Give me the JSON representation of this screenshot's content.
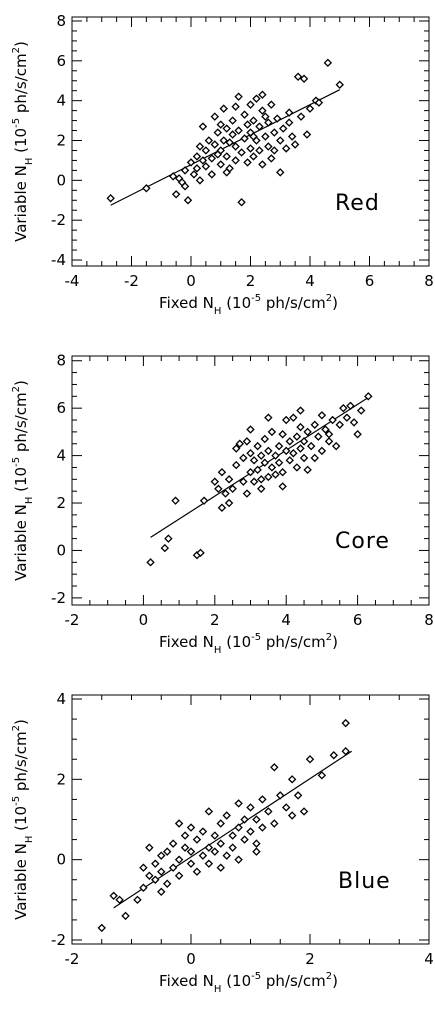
{
  "chart_data": [
    {
      "type": "scatter",
      "panel_label": "Red",
      "xlabel_main": "Fixed N",
      "xlabel_sub": "H",
      "xlabel_rest": " (10",
      "xlabel_exp": "-5",
      "xlabel_tail": " ph/s/cm",
      "xlabel_sq": "2",
      "xlabel_close": ")",
      "ylabel_main": "Variable N",
      "ylabel_sub": "H",
      "ylabel_rest": " (10",
      "ylabel_exp": "-5",
      "ylabel_tail": " ph/s/cm",
      "ylabel_sq": "2",
      "ylabel_close": ")",
      "xlim": [
        -4,
        8
      ],
      "ylim": [
        -4.3,
        8.2
      ],
      "xticks": [
        "-4",
        "-2",
        "0",
        "2",
        "4",
        "6",
        "8"
      ],
      "yticks": [
        "-4",
        "-2",
        "0",
        "2",
        "4",
        "6",
        "8"
      ],
      "fit_line": {
        "x": [
          -2.7,
          5.0
        ],
        "y": [
          -1.25,
          4.55
        ]
      },
      "points": [
        [
          -2.7,
          -0.9
        ],
        [
          -1.5,
          -0.4
        ],
        [
          -0.6,
          0.2
        ],
        [
          -0.5,
          -0.7
        ],
        [
          -0.4,
          0.1
        ],
        [
          -0.2,
          -0.3
        ],
        [
          -0.1,
          -1.0
        ],
        [
          -0.2,
          0.5
        ],
        [
          0.0,
          0.9
        ],
        [
          0.1,
          0.3
        ],
        [
          0.2,
          1.2
        ],
        [
          0.3,
          0.0
        ],
        [
          0.3,
          1.7
        ],
        [
          0.4,
          2.7
        ],
        [
          0.5,
          0.7
        ],
        [
          0.5,
          1.5
        ],
        [
          0.6,
          2.0
        ],
        [
          0.7,
          0.3
        ],
        [
          0.7,
          1.1
        ],
        [
          0.8,
          1.8
        ],
        [
          0.8,
          3.2
        ],
        [
          0.9,
          2.4
        ],
        [
          1.0,
          0.8
        ],
        [
          1.0,
          1.5
        ],
        [
          1.1,
          2.0
        ],
        [
          1.1,
          3.6
        ],
        [
          1.2,
          1.2
        ],
        [
          1.2,
          2.6
        ],
        [
          1.3,
          0.6
        ],
        [
          1.3,
          1.9
        ],
        [
          1.4,
          2.3
        ],
        [
          1.4,
          3.0
        ],
        [
          1.5,
          1.0
        ],
        [
          1.5,
          1.7
        ],
        [
          1.6,
          2.5
        ],
        [
          1.6,
          4.2
        ],
        [
          1.7,
          -1.1
        ],
        [
          1.7,
          1.4
        ],
        [
          1.8,
          2.1
        ],
        [
          1.8,
          3.3
        ],
        [
          1.9,
          0.9
        ],
        [
          1.9,
          2.8
        ],
        [
          2.0,
          1.6
        ],
        [
          2.0,
          2.4
        ],
        [
          2.0,
          3.8
        ],
        [
          2.1,
          1.2
        ],
        [
          2.1,
          3.0
        ],
        [
          2.2,
          2.0
        ],
        [
          2.2,
          4.1
        ],
        [
          2.3,
          1.5
        ],
        [
          2.3,
          2.7
        ],
        [
          2.4,
          3.5
        ],
        [
          2.4,
          0.8
        ],
        [
          2.5,
          2.2
        ],
        [
          2.5,
          3.2
        ],
        [
          2.6,
          1.7
        ],
        [
          2.6,
          2.9
        ],
        [
          2.7,
          1.1
        ],
        [
          2.7,
          3.8
        ],
        [
          2.8,
          2.4
        ],
        [
          2.9,
          3.1
        ],
        [
          3.0,
          2.0
        ],
        [
          3.0,
          0.4
        ],
        [
          3.1,
          2.6
        ],
        [
          3.2,
          1.6
        ],
        [
          3.3,
          3.4
        ],
        [
          3.4,
          2.2
        ],
        [
          3.5,
          1.8
        ],
        [
          3.6,
          5.2
        ],
        [
          3.7,
          3.2
        ],
        [
          3.8,
          5.1
        ],
        [
          3.9,
          2.3
        ],
        [
          4.0,
          3.6
        ],
        [
          4.2,
          4.0
        ],
        [
          4.3,
          3.9
        ],
        [
          4.6,
          5.9
        ],
        [
          5.0,
          4.8
        ],
        [
          0.4,
          1.0
        ],
        [
          0.9,
          1.3
        ],
        [
          1.2,
          0.4
        ],
        [
          2.8,
          1.5
        ],
        [
          0.2,
          0.6
        ],
        [
          1.0,
          2.8
        ],
        [
          2.4,
          4.3
        ],
        [
          3.3,
          2.9
        ],
        [
          -0.3,
          -0.1
        ],
        [
          1.5,
          3.7
        ],
        [
          2.1,
          2.2
        ]
      ]
    },
    {
      "type": "scatter",
      "panel_label": "Core",
      "xlabel_main": "Fixed N",
      "xlabel_sub": "H",
      "xlabel_rest": " (10",
      "xlabel_exp": "-5",
      "xlabel_tail": " ph/s/cm",
      "xlabel_sq": "2",
      "xlabel_close": ")",
      "ylabel_main": "Variable N",
      "ylabel_sub": "H",
      "ylabel_rest": " (10",
      "ylabel_exp": "-5",
      "ylabel_tail": " ph/s/cm",
      "ylabel_sq": "2",
      "ylabel_close": ")",
      "xlim": [
        -2,
        8
      ],
      "ylim": [
        -2.3,
        8.2
      ],
      "xticks": [
        "-2",
        "0",
        "2",
        "4",
        "6",
        "8"
      ],
      "yticks": [
        "-2",
        "0",
        "2",
        "4",
        "6",
        "8"
      ],
      "fit_line": {
        "x": [
          0.2,
          6.3
        ],
        "y": [
          0.55,
          6.45
        ]
      },
      "points": [
        [
          0.2,
          -0.5
        ],
        [
          0.6,
          0.1
        ],
        [
          0.7,
          0.5
        ],
        [
          0.9,
          2.1
        ],
        [
          1.5,
          -0.2
        ],
        [
          1.6,
          -0.1
        ],
        [
          1.7,
          2.1
        ],
        [
          2.0,
          2.9
        ],
        [
          2.1,
          2.6
        ],
        [
          2.2,
          1.8
        ],
        [
          2.2,
          3.3
        ],
        [
          2.3,
          2.4
        ],
        [
          2.4,
          3.0
        ],
        [
          2.5,
          2.6
        ],
        [
          2.6,
          3.6
        ],
        [
          2.7,
          4.5
        ],
        [
          2.8,
          2.9
        ],
        [
          2.8,
          3.9
        ],
        [
          2.9,
          2.4
        ],
        [
          2.9,
          4.6
        ],
        [
          3.0,
          3.3
        ],
        [
          3.0,
          4.1
        ],
        [
          3.1,
          2.9
        ],
        [
          3.1,
          3.8
        ],
        [
          3.2,
          3.4
        ],
        [
          3.2,
          4.4
        ],
        [
          3.3,
          2.6
        ],
        [
          3.3,
          4.0
        ],
        [
          3.4,
          3.7
        ],
        [
          3.4,
          4.7
        ],
        [
          3.5,
          3.1
        ],
        [
          3.5,
          4.2
        ],
        [
          3.6,
          3.5
        ],
        [
          3.6,
          5.0
        ],
        [
          3.7,
          4.0
        ],
        [
          3.7,
          3.2
        ],
        [
          3.8,
          4.4
        ],
        [
          3.8,
          3.7
        ],
        [
          3.9,
          4.9
        ],
        [
          3.9,
          3.3
        ],
        [
          4.0,
          4.2
        ],
        [
          4.0,
          5.5
        ],
        [
          4.1,
          3.8
        ],
        [
          4.1,
          4.6
        ],
        [
          4.2,
          4.1
        ],
        [
          4.2,
          5.6
        ],
        [
          4.3,
          3.5
        ],
        [
          4.3,
          4.8
        ],
        [
          4.4,
          4.3
        ],
        [
          4.4,
          5.2
        ],
        [
          4.5,
          3.9
        ],
        [
          4.5,
          4.6
        ],
        [
          4.6,
          5.0
        ],
        [
          4.7,
          4.4
        ],
        [
          4.8,
          5.3
        ],
        [
          4.8,
          3.9
        ],
        [
          4.9,
          4.8
        ],
        [
          5.0,
          5.7
        ],
        [
          5.0,
          4.2
        ],
        [
          5.1,
          5.1
        ],
        [
          5.2,
          4.9
        ],
        [
          5.3,
          5.5
        ],
        [
          5.4,
          4.4
        ],
        [
          5.5,
          5.3
        ],
        [
          5.6,
          6.0
        ],
        [
          5.7,
          5.6
        ],
        [
          5.8,
          6.1
        ],
        [
          5.9,
          5.4
        ],
        [
          6.0,
          4.9
        ],
        [
          6.1,
          5.9
        ],
        [
          6.3,
          6.5
        ],
        [
          3.5,
          5.6
        ],
        [
          2.6,
          4.3
        ],
        [
          3.9,
          2.7
        ],
        [
          4.6,
          3.4
        ],
        [
          2.4,
          2.0
        ],
        [
          3.0,
          5.1
        ],
        [
          4.4,
          5.9
        ],
        [
          5.2,
          4.6
        ],
        [
          3.3,
          3.0
        ]
      ]
    },
    {
      "type": "scatter",
      "panel_label": "Blue",
      "xlabel_main": "Fixed N",
      "xlabel_sub": "H",
      "xlabel_rest": " (10",
      "xlabel_exp": "-5",
      "xlabel_tail": " ph/s/cm",
      "xlabel_sq": "2",
      "xlabel_close": ")",
      "ylabel_main": "Variable N",
      "ylabel_sub": "H",
      "ylabel_rest": " (10",
      "ylabel_exp": "-5",
      "ylabel_tail": " ph/s/cm",
      "ylabel_sq": "2",
      "ylabel_close": ")",
      "xlim": [
        -2,
        4
      ],
      "ylim": [
        -2.1,
        4.1
      ],
      "xticks": [
        "-2",
        "0",
        "2",
        "4"
      ],
      "yticks": [
        "-2",
        "0",
        "2",
        "4"
      ],
      "fit_line": {
        "x": [
          -1.3,
          2.7
        ],
        "y": [
          -1.2,
          2.7
        ]
      },
      "points": [
        [
          -1.5,
          -1.7
        ],
        [
          -1.3,
          -0.9
        ],
        [
          -1.2,
          -1.0
        ],
        [
          -1.1,
          -1.4
        ],
        [
          -0.9,
          -1.0
        ],
        [
          -0.8,
          -0.7
        ],
        [
          -0.7,
          -0.4
        ],
        [
          -0.7,
          0.3
        ],
        [
          -0.6,
          -0.5
        ],
        [
          -0.6,
          -0.1
        ],
        [
          -0.5,
          -0.3
        ],
        [
          -0.5,
          0.1
        ],
        [
          -0.4,
          -0.6
        ],
        [
          -0.4,
          0.2
        ],
        [
          -0.3,
          -0.2
        ],
        [
          -0.3,
          0.4
        ],
        [
          -0.2,
          0.0
        ],
        [
          -0.2,
          -0.4
        ],
        [
          -0.1,
          0.3
        ],
        [
          -0.1,
          0.6
        ],
        [
          0.0,
          -0.1
        ],
        [
          0.0,
          0.2
        ],
        [
          0.1,
          0.5
        ],
        [
          0.1,
          -0.3
        ],
        [
          0.2,
          0.1
        ],
        [
          0.2,
          0.7
        ],
        [
          0.3,
          0.3
        ],
        [
          0.3,
          -0.1
        ],
        [
          0.4,
          0.6
        ],
        [
          0.4,
          0.2
        ],
        [
          0.5,
          0.9
        ],
        [
          0.5,
          0.4
        ],
        [
          0.6,
          0.1
        ],
        [
          0.6,
          1.1
        ],
        [
          0.7,
          0.6
        ],
        [
          0.7,
          0.3
        ],
        [
          0.8,
          0.8
        ],
        [
          0.8,
          0.0
        ],
        [
          0.9,
          1.0
        ],
        [
          0.9,
          0.5
        ],
        [
          1.0,
          0.7
        ],
        [
          1.0,
          1.3
        ],
        [
          1.1,
          0.4
        ],
        [
          1.1,
          1.0
        ],
        [
          1.2,
          1.5
        ],
        [
          1.2,
          0.8
        ],
        [
          1.3,
          1.2
        ],
        [
          1.4,
          0.9
        ],
        [
          1.5,
          1.6
        ],
        [
          1.6,
          1.3
        ],
        [
          1.7,
          2.0
        ],
        [
          1.8,
          1.6
        ],
        [
          1.9,
          1.2
        ],
        [
          2.0,
          2.5
        ],
        [
          2.2,
          2.1
        ],
        [
          2.4,
          2.6
        ],
        [
          2.6,
          2.7
        ],
        [
          2.6,
          3.4
        ],
        [
          1.4,
          2.3
        ],
        [
          -0.2,
          0.9
        ],
        [
          0.5,
          -0.2
        ],
        [
          1.1,
          0.2
        ],
        [
          -0.8,
          -0.2
        ],
        [
          0.3,
          1.2
        ],
        [
          1.7,
          1.1
        ],
        [
          0.8,
          1.4
        ],
        [
          -0.5,
          -0.8
        ],
        [
          0.0,
          0.8
        ]
      ]
    }
  ]
}
